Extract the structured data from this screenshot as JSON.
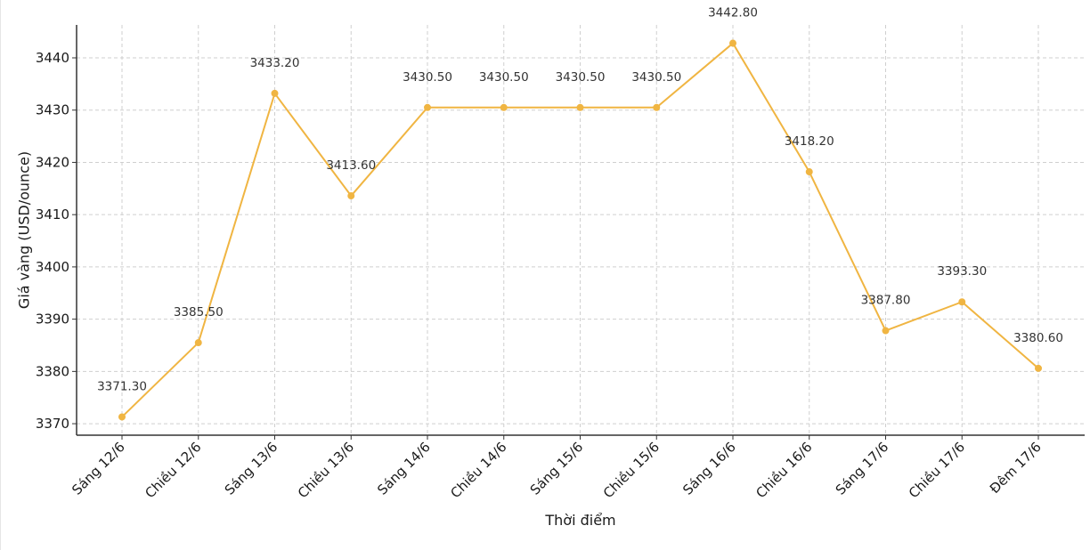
{
  "chart_data": {
    "type": "line",
    "categories": [
      "Sáng 12/6",
      "Chiều 12/6",
      "Sáng 13/6",
      "Chiều 13/6",
      "Sáng 14/6",
      "Chiều 14/6",
      "Sáng 15/6",
      "Chiều 15/6",
      "Sáng 16/6",
      "Chiều 16/6",
      "Sáng 17/6",
      "Chiều 17/6",
      "Đêm 17/6"
    ],
    "values": [
      3371.3,
      3385.5,
      3433.2,
      3413.6,
      3430.5,
      3430.5,
      3430.5,
      3430.5,
      3442.8,
      3418.2,
      3387.8,
      3393.3,
      3380.6
    ],
    "data_labels": [
      "3371.30",
      "3385.50",
      "3433.20",
      "3413.60",
      "3430.50",
      "3430.50",
      "3430.50",
      "3430.50",
      "3442.80",
      "3418.20",
      "3387.80",
      "3393.30",
      "3380.60"
    ],
    "title": "",
    "xlabel": "Thời điểm",
    "ylabel": "Giá vàng (USD/ounce)",
    "ylim": [
      3367.8,
      3446.3
    ],
    "yticks": [
      "3370",
      "3380",
      "3390",
      "3400",
      "3410",
      "3420",
      "3430",
      "3440"
    ],
    "line_color": "#f0b542",
    "grid": true
  }
}
